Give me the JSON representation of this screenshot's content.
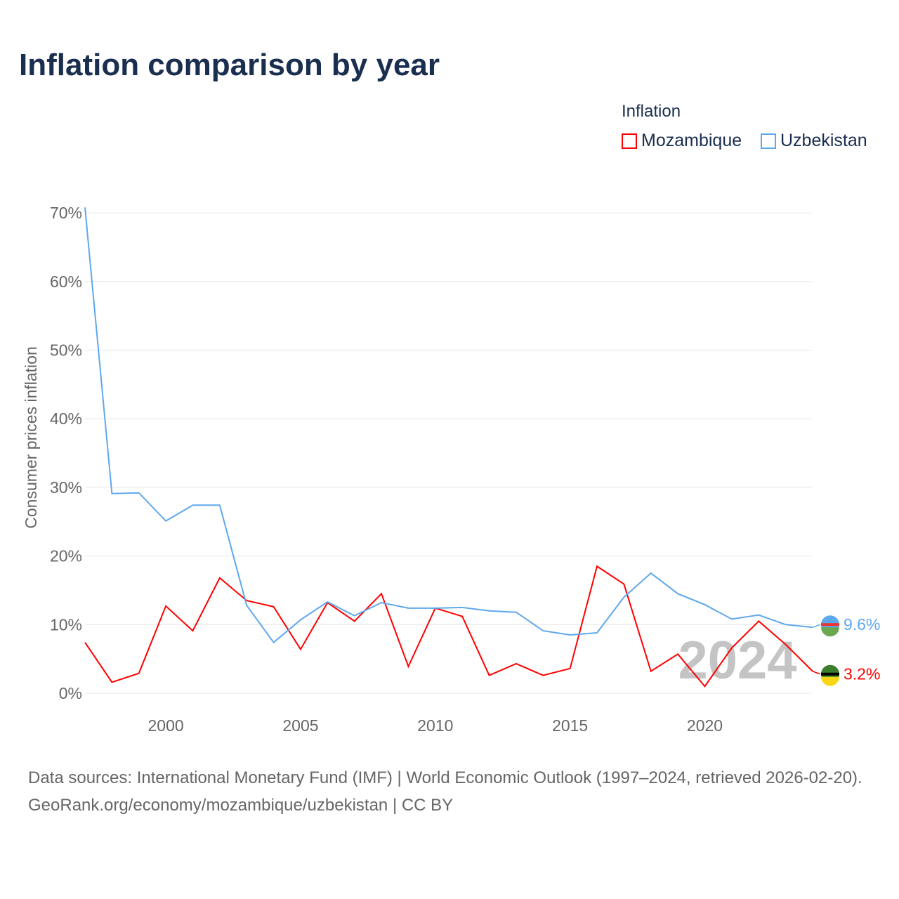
{
  "title": "Inflation comparison by year",
  "legend": {
    "title": "Inflation",
    "items": [
      "Mozambique",
      "Uzbekistan"
    ]
  },
  "footer": {
    "line1": "Data sources: International Monetary Fund (IMF) | World Economic Outlook (1997–2024, retrieved 2026-02-20).",
    "line2": "GeoRank.org/economy/mozambique/uzbekistan | CC BY"
  },
  "year_watermark": "2024",
  "chart_data": {
    "type": "line",
    "title": "Inflation comparison by year",
    "ylabel": "Consumer prices inflation",
    "xlabel": "",
    "x": [
      1997,
      1998,
      1999,
      2000,
      2001,
      2002,
      2003,
      2004,
      2005,
      2006,
      2007,
      2008,
      2009,
      2010,
      2011,
      2012,
      2013,
      2014,
      2015,
      2016,
      2017,
      2018,
      2019,
      2020,
      2021,
      2022,
      2023,
      2024
    ],
    "xticks": [
      2000,
      2005,
      2010,
      2015,
      2020
    ],
    "yticks": [
      0,
      10,
      20,
      30,
      40,
      50,
      60,
      70
    ],
    "ylim": [
      0,
      70
    ],
    "series": [
      {
        "name": "Mozambique",
        "color": "#ff0000",
        "end_label": "3.2%",
        "values": [
          7.4,
          1.6,
          2.9,
          12.7,
          9.1,
          16.8,
          13.5,
          12.6,
          6.4,
          13.2,
          10.5,
          14.5,
          3.9,
          12.4,
          11.2,
          2.6,
          4.3,
          2.6,
          3.6,
          18.5,
          15.9,
          3.2,
          5.7,
          1.0,
          6.6,
          10.5,
          7.1,
          3.2
        ]
      },
      {
        "name": "Uzbekistan",
        "color": "#5ea8ee",
        "end_label": "9.6%",
        "values": [
          70.8,
          29.1,
          29.2,
          25.1,
          27.4,
          27.4,
          12.8,
          7.4,
          10.7,
          13.3,
          11.3,
          13.2,
          12.4,
          12.4,
          12.5,
          12.0,
          11.8,
          9.1,
          8.5,
          8.8,
          14.0,
          17.5,
          14.5,
          12.9,
          10.8,
          11.4,
          10.0,
          9.6
        ]
      }
    ]
  }
}
